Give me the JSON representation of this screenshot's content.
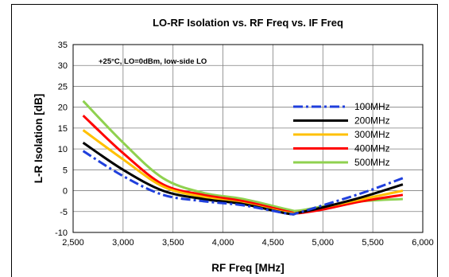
{
  "chart_data": {
    "type": "line",
    "title": "LO-RF Isolation vs. RF Freq vs. IF Freq",
    "xlabel": "RF Freq [MHz]",
    "ylabel": "L-R Isolation [dB]",
    "annotation": "+25°C, LO=0dBm, low-side LO",
    "xlim": [
      2500,
      6000
    ],
    "ylim": [
      -10,
      35
    ],
    "xticks": [
      2500,
      3000,
      3500,
      4000,
      4500,
      5000,
      5500,
      6000
    ],
    "xtick_labels": [
      "2,500",
      "3,000",
      "3,500",
      "4,000",
      "4,500",
      "5,000",
      "5,500",
      "6,000"
    ],
    "yticks": [
      -10,
      -5,
      0,
      5,
      10,
      15,
      20,
      25,
      30,
      35
    ],
    "ytick_labels": [
      "-10",
      "-5",
      "0",
      "5",
      "10",
      "15",
      "20",
      "25",
      "30",
      "35"
    ],
    "grid": true,
    "legend_position": "right",
    "series": [
      {
        "name": "100MHz",
        "color": "#1f3fdc",
        "dash": "dashdot",
        "x": [
          2600,
          3000,
          3400,
          3800,
          4200,
          4650,
          4750,
          5000,
          5400,
          5800
        ],
        "y": [
          9.5,
          3.5,
          -1.0,
          -2.5,
          -3.5,
          -5.5,
          -5.3,
          -3.5,
          -0.5,
          3.0
        ]
      },
      {
        "name": "200MHz",
        "color": "#000000",
        "dash": "solid",
        "x": [
          2600,
          3000,
          3400,
          3800,
          4200,
          4650,
          4750,
          5000,
          5400,
          5800
        ],
        "y": [
          11.5,
          5.0,
          0.0,
          -2.0,
          -3.2,
          -5.5,
          -5.3,
          -4.0,
          -1.5,
          1.5
        ]
      },
      {
        "name": "300MHz",
        "color": "#ffc000",
        "dash": "solid",
        "x": [
          2600,
          3000,
          3400,
          3800,
          4200,
          4650,
          4750,
          5000,
          5400,
          5800
        ],
        "y": [
          14.5,
          7.5,
          1.0,
          -1.5,
          -3.0,
          -5.3,
          -5.2,
          -4.0,
          -2.0,
          0.0
        ]
      },
      {
        "name": "400MHz",
        "color": "#ff0000",
        "dash": "solid",
        "x": [
          2600,
          3000,
          3400,
          3800,
          4200,
          4650,
          4750,
          5000,
          5400,
          5800
        ],
        "y": [
          18.0,
          9.0,
          1.5,
          -1.0,
          -2.5,
          -5.0,
          -5.4,
          -4.5,
          -2.5,
          -1.0
        ]
      },
      {
        "name": "500MHz",
        "color": "#8fd14f",
        "dash": "solid",
        "x": [
          2600,
          3000,
          3400,
          3800,
          4200,
          4650,
          4750,
          5000,
          5400,
          5800
        ],
        "y": [
          21.5,
          11.5,
          3.0,
          -0.5,
          -2.0,
          -4.5,
          -4.8,
          -3.8,
          -2.5,
          -2.0
        ]
      }
    ]
  }
}
